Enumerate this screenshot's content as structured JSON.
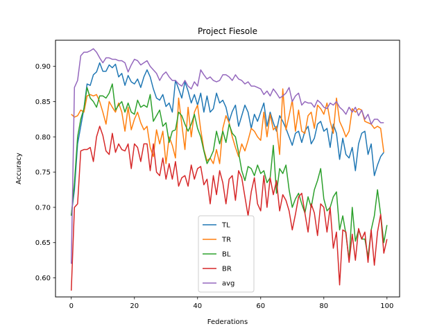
{
  "chart_data": {
    "type": "line",
    "title": "Project Fiesole",
    "xlabel": "Federations",
    "ylabel": "Accuracy",
    "xlim": [
      -5,
      104
    ],
    "ylim": [
      0.573,
      0.937
    ],
    "xticks": [
      0,
      20,
      40,
      60,
      80,
      100
    ],
    "yticks": [
      0.6,
      0.65,
      0.7,
      0.75,
      0.8,
      0.85,
      0.9
    ],
    "ytick_labels": [
      "0.60",
      "0.65",
      "0.70",
      "0.75",
      "0.80",
      "0.85",
      "0.90"
    ],
    "grid": false,
    "legend_position": "bottom-center",
    "series": [
      {
        "name": "TL",
        "color": "#1f77b4",
        "values": [
          0.689,
          0.725,
          0.79,
          0.815,
          0.84,
          0.875,
          0.873,
          0.888,
          0.892,
          0.905,
          0.893,
          0.893,
          0.902,
          0.898,
          0.903,
          0.885,
          0.89,
          0.873,
          0.887,
          0.878,
          0.875,
          0.882,
          0.87,
          0.885,
          0.895,
          0.885,
          0.868,
          0.855,
          0.852,
          0.86,
          0.843,
          0.848,
          0.835,
          0.88,
          0.868,
          0.855,
          0.878,
          0.865,
          0.848,
          0.86,
          0.845,
          0.862,
          0.835,
          0.858,
          0.835,
          0.84,
          0.862,
          0.848,
          0.852,
          0.842,
          0.822,
          0.836,
          0.845,
          0.815,
          0.83,
          0.845,
          0.835,
          0.812,
          0.832,
          0.822,
          0.835,
          0.848,
          0.815,
          0.835,
          0.82,
          0.808,
          0.83,
          0.822,
          0.812,
          0.8,
          0.788,
          0.805,
          0.808,
          0.792,
          0.808,
          0.815,
          0.79,
          0.798,
          0.818,
          0.822,
          0.808,
          0.812,
          0.785,
          0.818,
          0.805,
          0.768,
          0.798,
          0.775,
          0.77,
          0.785,
          0.752,
          0.79,
          0.805,
          0.808,
          0.775,
          0.79,
          0.745,
          0.76,
          0.772,
          0.778
        ]
      },
      {
        "name": "TR",
        "color": "#ff7f0e",
        "values": [
          0.832,
          0.828,
          0.83,
          0.838,
          0.835,
          0.858,
          0.86,
          0.858,
          0.86,
          0.85,
          0.835,
          0.818,
          0.85,
          0.842,
          0.835,
          0.848,
          0.835,
          0.808,
          0.842,
          0.81,
          0.825,
          0.835,
          0.82,
          0.81,
          0.815,
          0.785,
          0.772,
          0.81,
          0.79,
          0.808,
          0.762,
          0.8,
          0.788,
          0.77,
          0.855,
          0.818,
          0.782,
          0.842,
          0.8,
          0.835,
          0.845,
          0.81,
          0.782,
          0.766,
          0.77,
          0.762,
          0.782,
          0.762,
          0.812,
          0.83,
          0.82,
          0.8,
          0.785,
          0.772,
          0.79,
          0.78,
          0.795,
          0.812,
          0.808,
          0.8,
          0.795,
          0.835,
          0.8,
          0.832,
          0.81,
          0.815,
          0.775,
          0.868,
          0.81,
          0.83,
          0.852,
          0.808,
          0.838,
          0.808,
          0.805,
          0.83,
          0.835,
          0.812,
          0.845,
          0.84,
          0.832,
          0.848,
          0.822,
          0.805,
          0.855,
          0.822,
          0.812,
          0.8,
          0.808,
          0.84,
          0.835,
          0.84,
          0.838,
          0.822,
          0.82,
          0.818,
          0.812,
          0.815,
          0.812,
          0.778
        ]
      },
      {
        "name": "BL",
        "color": "#2ca02c",
        "values": [
          0.688,
          0.735,
          0.8,
          0.825,
          0.84,
          0.87,
          0.855,
          0.85,
          0.842,
          0.858,
          0.858,
          0.855,
          0.862,
          0.875,
          0.838,
          0.845,
          0.85,
          0.835,
          0.848,
          0.835,
          0.832,
          0.852,
          0.842,
          0.845,
          0.842,
          0.86,
          0.822,
          0.83,
          0.838,
          0.815,
          0.82,
          0.792,
          0.808,
          0.81,
          0.835,
          0.83,
          0.818,
          0.808,
          0.818,
          0.832,
          0.812,
          0.8,
          0.78,
          0.762,
          0.77,
          0.78,
          0.808,
          0.79,
          0.808,
          0.792,
          0.818,
          0.805,
          0.8,
          0.778,
          0.752,
          0.738,
          0.758,
          0.755,
          0.745,
          0.76,
          0.748,
          0.752,
          0.735,
          0.742,
          0.788,
          0.72,
          0.755,
          0.748,
          0.76,
          0.725,
          0.7,
          0.712,
          0.72,
          0.705,
          0.692,
          0.715,
          0.7,
          0.725,
          0.738,
          0.755,
          0.712,
          0.695,
          0.7,
          0.715,
          0.722,
          0.668,
          0.688,
          0.662,
          0.625,
          0.7,
          0.652,
          0.668,
          0.655,
          0.655,
          0.63,
          0.668,
          0.688,
          0.725,
          0.69,
          0.65,
          0.675
        ]
      },
      {
        "name": "BR",
        "color": "#d62728",
        "values": [
          0.582,
          0.7,
          0.705,
          0.78,
          0.782,
          0.782,
          0.785,
          0.765,
          0.8,
          0.815,
          0.802,
          0.78,
          0.775,
          0.805,
          0.778,
          0.79,
          0.782,
          0.78,
          0.79,
          0.755,
          0.79,
          0.785,
          0.765,
          0.79,
          0.79,
          0.752,
          0.79,
          0.75,
          0.745,
          0.77,
          0.74,
          0.762,
          0.74,
          0.765,
          0.73,
          0.742,
          0.745,
          0.73,
          0.76,
          0.74,
          0.755,
          0.758,
          0.732,
          0.74,
          0.705,
          0.745,
          0.718,
          0.752,
          0.735,
          0.705,
          0.74,
          0.745,
          0.71,
          0.752,
          0.742,
          0.715,
          0.688,
          0.722,
          0.742,
          0.705,
          0.695,
          0.745,
          0.7,
          0.742,
          0.718,
          0.738,
          0.695,
          0.718,
          0.71,
          0.695,
          0.668,
          0.69,
          0.715,
          0.72,
          0.692,
          0.665,
          0.705,
          0.692,
          0.66,
          0.705,
          0.7,
          0.665,
          0.7,
          0.642,
          0.665,
          0.59,
          0.668,
          0.665,
          0.622,
          0.662,
          0.625,
          0.67,
          0.655,
          0.665,
          0.622,
          0.668,
          0.618,
          0.665,
          0.69,
          0.635,
          0.655
        ]
      },
      {
        "name": "avg",
        "color": "#9467bd",
        "values": [
          0.62,
          0.87,
          0.88,
          0.915,
          0.92,
          0.92,
          0.922,
          0.925,
          0.92,
          0.912,
          0.905,
          0.912,
          0.912,
          0.91,
          0.91,
          0.908,
          0.908,
          0.905,
          0.892,
          0.902,
          0.91,
          0.908,
          0.902,
          0.905,
          0.908,
          0.9,
          0.895,
          0.89,
          0.88,
          0.888,
          0.892,
          0.885,
          0.88,
          0.88,
          0.875,
          0.872,
          0.88,
          0.872,
          0.868,
          0.878,
          0.872,
          0.895,
          0.888,
          0.882,
          0.885,
          0.88,
          0.878,
          0.88,
          0.888,
          0.888,
          0.885,
          0.88,
          0.888,
          0.882,
          0.88,
          0.875,
          0.878,
          0.872,
          0.872,
          0.87,
          0.868,
          0.86,
          0.865,
          0.858,
          0.868,
          0.862,
          0.855,
          0.858,
          0.862,
          0.87,
          0.85,
          0.858,
          0.862,
          0.845,
          0.85,
          0.848,
          0.848,
          0.842,
          0.852,
          0.848,
          0.842,
          0.84,
          0.848,
          0.845,
          0.85,
          0.842,
          0.838,
          0.832,
          0.842,
          0.835,
          0.842,
          0.83,
          0.838,
          0.825,
          0.832,
          0.818,
          0.825,
          0.825,
          0.82,
          0.82
        ]
      }
    ]
  }
}
